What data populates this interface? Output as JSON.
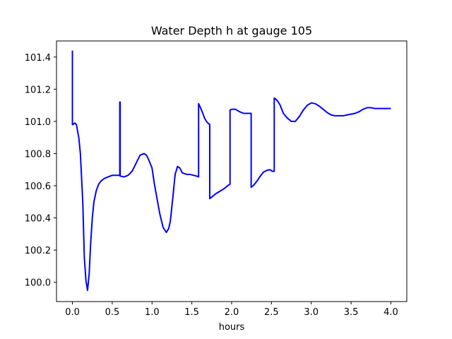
{
  "chart_data": {
    "type": "line",
    "title": "Water Depth h at gauge 105",
    "xlabel": "hours",
    "ylabel": "",
    "xlim": [
      -0.2,
      4.2
    ],
    "ylim": [
      99.88,
      101.5
    ],
    "grid": false,
    "xticks": [
      0.0,
      0.5,
      1.0,
      1.5,
      2.0,
      2.5,
      3.0,
      3.5,
      4.0
    ],
    "xtick_labels": [
      "0.0",
      "0.5",
      "1.0",
      "1.5",
      "2.0",
      "2.5",
      "3.0",
      "3.5",
      "4.0"
    ],
    "yticks": [
      100.0,
      100.2,
      100.4,
      100.6,
      100.8,
      101.0,
      101.2,
      101.4
    ],
    "ytick_labels": [
      "100.0",
      "100.2",
      "100.4",
      "100.6",
      "100.8",
      "101.0",
      "101.2",
      "101.4"
    ],
    "series": [
      {
        "color": "#0000ff",
        "x": [
          0.0,
          0.0,
          0.005,
          0.03,
          0.05,
          0.08,
          0.1,
          0.13,
          0.15,
          0.17,
          0.19,
          0.21,
          0.23,
          0.25,
          0.27,
          0.3,
          0.33,
          0.36,
          0.4,
          0.45,
          0.5,
          0.55,
          0.595,
          0.595,
          0.6,
          0.6,
          0.65,
          0.7,
          0.75,
          0.8,
          0.85,
          0.9,
          0.93,
          0.96,
          1.0,
          1.03,
          1.07,
          1.1,
          1.14,
          1.18,
          1.21,
          1.23,
          1.26,
          1.29,
          1.32,
          1.35,
          1.38,
          1.41,
          1.44,
          1.48,
          1.52,
          1.56,
          1.585,
          1.585,
          1.6,
          1.63,
          1.66,
          1.69,
          1.725,
          1.725,
          1.75,
          1.8,
          1.85,
          1.9,
          1.95,
          1.98,
          1.98,
          2.0,
          2.05,
          2.1,
          2.15,
          2.2,
          2.245,
          2.245,
          2.28,
          2.32,
          2.36,
          2.4,
          2.44,
          2.48,
          2.51,
          2.535,
          2.535,
          2.55,
          2.58,
          2.61,
          2.65,
          2.7,
          2.75,
          2.8,
          2.85,
          2.9,
          2.95,
          3.0,
          3.05,
          3.1,
          3.15,
          3.2,
          3.25,
          3.3,
          3.35,
          3.4,
          3.45,
          3.5,
          3.55,
          3.6,
          3.65,
          3.7,
          3.75,
          3.8,
          3.85,
          3.9,
          3.95,
          4.0
        ],
        "y": [
          101.44,
          100.98,
          100.98,
          100.99,
          100.98,
          100.9,
          100.8,
          100.5,
          100.15,
          100.01,
          99.95,
          100.05,
          100.25,
          100.4,
          100.5,
          100.57,
          100.61,
          100.63,
          100.645,
          100.655,
          100.665,
          100.665,
          100.665,
          101.12,
          101.12,
          100.66,
          100.655,
          100.665,
          100.69,
          100.74,
          100.79,
          100.8,
          100.79,
          100.76,
          100.71,
          100.61,
          100.5,
          100.42,
          100.34,
          100.31,
          100.335,
          100.38,
          100.52,
          100.67,
          100.72,
          100.71,
          100.68,
          100.675,
          100.67,
          100.67,
          100.665,
          100.66,
          100.655,
          101.11,
          101.095,
          101.06,
          101.02,
          100.995,
          100.98,
          100.52,
          100.53,
          100.55,
          100.565,
          100.58,
          100.6,
          100.61,
          101.07,
          101.075,
          101.075,
          101.06,
          101.05,
          101.05,
          101.05,
          100.59,
          100.605,
          100.63,
          100.66,
          100.685,
          100.695,
          100.7,
          100.69,
          100.69,
          101.145,
          101.14,
          101.125,
          101.1,
          101.05,
          101.02,
          101.0,
          101.0,
          101.03,
          101.07,
          101.1,
          101.115,
          101.11,
          101.095,
          101.075,
          101.055,
          101.04,
          101.035,
          101.035,
          101.035,
          101.04,
          101.045,
          101.05,
          101.06,
          101.075,
          101.085,
          101.085,
          101.08,
          101.08,
          101.08,
          101.08,
          101.08
        ]
      }
    ]
  }
}
